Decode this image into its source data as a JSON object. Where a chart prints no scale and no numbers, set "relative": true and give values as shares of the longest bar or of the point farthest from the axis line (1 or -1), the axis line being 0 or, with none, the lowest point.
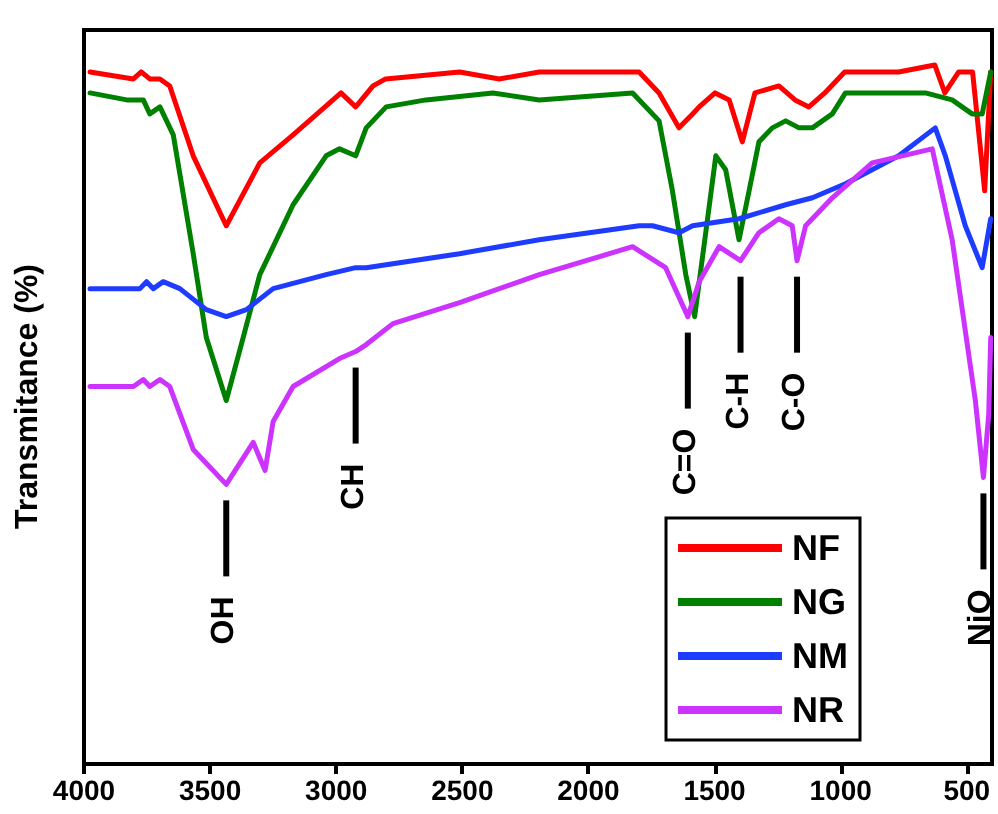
{
  "chart_data": {
    "type": "line",
    "relative": true,
    "xlabel": null,
    "ylabel": "Transmitance (%)",
    "xlim": [
      4000,
      400
    ],
    "xticks": [
      4000,
      3500,
      3000,
      2500,
      2000,
      1500,
      1000,
      500
    ],
    "legend": "bottom right",
    "marker": "none",
    "line_style": "solid",
    "series": [
      {
        "name": "NF",
        "color": "#ff0000",
        "x": [
          3976,
          3804,
          3773,
          3739,
          3699,
          3660,
          3567,
          3436,
          3303,
          3171,
          2981,
          2923,
          2854,
          2804,
          2511,
          2353,
          2195,
          1799,
          1720,
          1641,
          1587,
          1561,
          1498,
          1442,
          1390,
          1340,
          1245,
          1181,
          1126,
          1063,
          984,
          770,
          627,
          587,
          532,
          477,
          429,
          405
        ],
        "values": [
          0.99,
          0.98,
          0.99,
          0.98,
          0.98,
          0.97,
          0.87,
          0.77,
          0.86,
          0.9,
          0.96,
          0.94,
          0.97,
          0.98,
          0.99,
          0.98,
          0.99,
          0.99,
          0.96,
          0.91,
          0.93,
          0.94,
          0.96,
          0.95,
          0.89,
          0.96,
          0.97,
          0.95,
          0.94,
          0.96,
          0.99,
          0.99,
          1.0,
          0.96,
          0.99,
          0.99,
          0.82,
          0.99
        ]
      },
      {
        "name": "NG",
        "color": "#008000",
        "x": [
          3976,
          3831,
          3765,
          3739,
          3699,
          3646,
          3567,
          3515,
          3436,
          3369,
          3303,
          3171,
          3040,
          2987,
          2923,
          2881,
          2802,
          2644,
          2379,
          2195,
          1825,
          1720,
          1667,
          1614,
          1579,
          1535,
          1495,
          1456,
          1403,
          1363,
          1324,
          1271,
          1218,
          1165,
          1112,
          1033,
          981,
          664,
          558,
          479,
          439,
          405
        ],
        "values": [
          0.96,
          0.95,
          0.95,
          0.93,
          0.94,
          0.9,
          0.73,
          0.61,
          0.52,
          0.61,
          0.7,
          0.8,
          0.87,
          0.88,
          0.87,
          0.91,
          0.94,
          0.95,
          0.96,
          0.95,
          0.96,
          0.92,
          0.82,
          0.7,
          0.64,
          0.76,
          0.87,
          0.85,
          0.75,
          0.82,
          0.89,
          0.91,
          0.92,
          0.91,
          0.91,
          0.93,
          0.96,
          0.96,
          0.95,
          0.93,
          0.93,
          0.99
        ]
      },
      {
        "name": "NM",
        "color": "#1e3cff",
        "x": [
          3976,
          3778,
          3752,
          3725,
          3686,
          3620,
          3515,
          3436,
          3356,
          3250,
          3040,
          2923,
          2881,
          2511,
          2195,
          1799,
          1746,
          1641,
          1587,
          1403,
          1218,
          1112,
          981,
          770,
          625,
          585,
          506,
          439,
          405
        ],
        "values": [
          0.68,
          0.68,
          0.69,
          0.68,
          0.69,
          0.68,
          0.65,
          0.64,
          0.65,
          0.68,
          0.7,
          0.71,
          0.71,
          0.73,
          0.75,
          0.77,
          0.77,
          0.76,
          0.77,
          0.78,
          0.8,
          0.81,
          0.83,
          0.87,
          0.91,
          0.87,
          0.77,
          0.71,
          0.78
        ]
      },
      {
        "name": "NR",
        "color": "#cc33ff",
        "x": [
          3976,
          3804,
          3765,
          3739,
          3699,
          3660,
          3567,
          3436,
          3329,
          3282,
          3250,
          3171,
          2987,
          2923,
          2881,
          2775,
          2511,
          2195,
          1825,
          1694,
          1606,
          1561,
          1482,
          1397,
          1324,
          1245,
          1192,
          1173,
          1139,
          1033,
          875,
          637,
          558,
          466,
          434,
          413,
          405
        ],
        "values": [
          0.54,
          0.54,
          0.55,
          0.54,
          0.55,
          0.54,
          0.45,
          0.4,
          0.46,
          0.42,
          0.49,
          0.54,
          0.58,
          0.59,
          0.6,
          0.63,
          0.66,
          0.7,
          0.74,
          0.71,
          0.64,
          0.69,
          0.74,
          0.72,
          0.76,
          0.78,
          0.77,
          0.72,
          0.77,
          0.81,
          0.86,
          0.88,
          0.75,
          0.52,
          0.41,
          0.5,
          0.61
        ]
      }
    ],
    "annotations": [
      {
        "text": "OH",
        "x": 3436,
        "y": 0.4
      },
      {
        "text": "CH",
        "x": 2923,
        "y": 0.59
      },
      {
        "text": "C=O",
        "x": 1606,
        "y": 0.64
      },
      {
        "text": "C-H",
        "x": 1397,
        "y": 0.72
      },
      {
        "text": "C-O",
        "x": 1173,
        "y": 0.72
      },
      {
        "text": "NiO",
        "x": 434,
        "y": 0.41
      }
    ]
  }
}
